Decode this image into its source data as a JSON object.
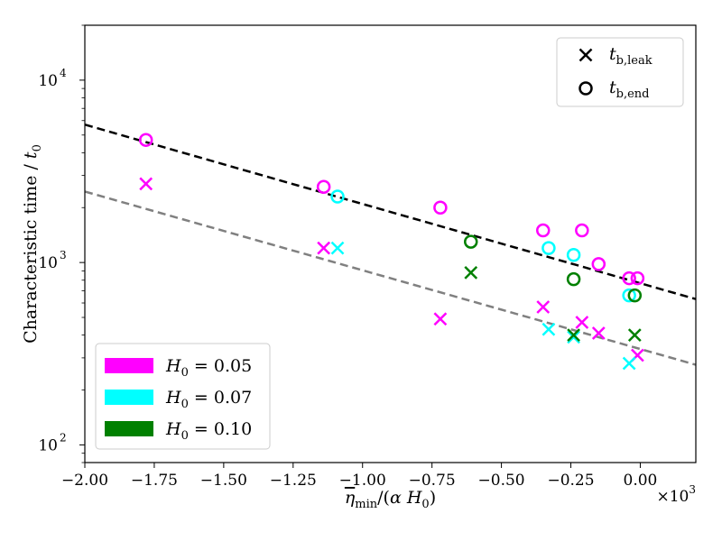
{
  "chart_data": {
    "type": "scatter",
    "xlabel": "η̄min/(α H0)",
    "ylabel": "Characteristic time / t0",
    "x_multiplier": "×10^3",
    "x_scale_text": {
      "base": "×10",
      "exponent": "3"
    },
    "xlim": [
      -2.0,
      0.2
    ],
    "ylim": [
      80,
      20000
    ],
    "yscale": "log",
    "x_ticks": [
      -2.0,
      -1.75,
      -1.5,
      -1.25,
      -1.0,
      -0.75,
      -0.5,
      -0.25,
      0.0
    ],
    "x_tick_labels": [
      "−2.00",
      "−1.75",
      "−1.50",
      "−1.25",
      "−1.00",
      "−0.75",
      "−0.50",
      "−0.25",
      "0.00"
    ],
    "y_ticks": [
      100,
      1000,
      10000
    ],
    "y_tick_labels": [
      {
        "base": "10",
        "exp": "2"
      },
      {
        "base": "10",
        "exp": "3"
      },
      {
        "base": "10",
        "exp": "4"
      }
    ],
    "colors": {
      "H0_0.05": "#ff00ff",
      "H0_0.07": "#00ffff",
      "H0_0.10": "#008000",
      "fit_end": "#000000",
      "fit_leak": "#808080"
    },
    "series": [
      {
        "name": "H0 = 0.05",
        "color": "#ff00ff",
        "t_b_end": [
          [
            -1.78,
            4700
          ],
          [
            -1.14,
            2600
          ],
          [
            -0.72,
            2000
          ],
          [
            -0.35,
            1500
          ],
          [
            -0.21,
            1500
          ],
          [
            -0.15,
            980
          ],
          [
            -0.04,
            820
          ],
          [
            -0.01,
            820
          ]
        ],
        "t_b_leak": [
          [
            -1.78,
            2700
          ],
          [
            -1.14,
            1200
          ],
          [
            -0.72,
            490
          ],
          [
            -0.35,
            570
          ],
          [
            -0.21,
            470
          ],
          [
            -0.15,
            410
          ],
          [
            -0.01,
            310
          ]
        ]
      },
      {
        "name": "H0 = 0.07",
        "color": "#00ffff",
        "t_b_end": [
          [
            -1.09,
            2300
          ],
          [
            -0.33,
            1200
          ],
          [
            -0.24,
            1100
          ],
          [
            -0.04,
            660
          ]
        ],
        "t_b_leak": [
          [
            -1.09,
            1200
          ],
          [
            -0.33,
            430
          ],
          [
            -0.24,
            390
          ],
          [
            -0.04,
            280
          ]
        ]
      },
      {
        "name": "H0 = 0.10",
        "color": "#008000",
        "t_b_end": [
          [
            -0.61,
            1300
          ],
          [
            -0.24,
            810
          ],
          [
            -0.02,
            660
          ]
        ],
        "t_b_leak": [
          [
            -0.61,
            880
          ],
          [
            -0.24,
            400
          ],
          [
            -0.02,
            400
          ]
        ]
      }
    ],
    "fit_lines": [
      {
        "name": "t_b,end fit",
        "color": "#000000",
        "points": [
          [
            -2.0,
            5700
          ],
          [
            0.2,
            630
          ]
        ]
      },
      {
        "name": "t_b,leak fit",
        "color": "#808080",
        "points": [
          [
            -2.0,
            2450
          ],
          [
            0.2,
            275
          ]
        ]
      }
    ],
    "legend_markers": {
      "position": "top-right",
      "items": [
        {
          "marker": "x",
          "base": "t",
          "sub": "b,leak"
        },
        {
          "marker": "o",
          "base": "t",
          "sub": "b,end"
        }
      ]
    },
    "legend_colors": {
      "position": "bottom-left",
      "items": [
        {
          "color": "#ff00ff",
          "label": "H0 = 0.05"
        },
        {
          "color": "#00ffff",
          "label": "H0 = 0.07"
        },
        {
          "color": "#008000",
          "label": "H0 = 0.10"
        }
      ]
    }
  }
}
